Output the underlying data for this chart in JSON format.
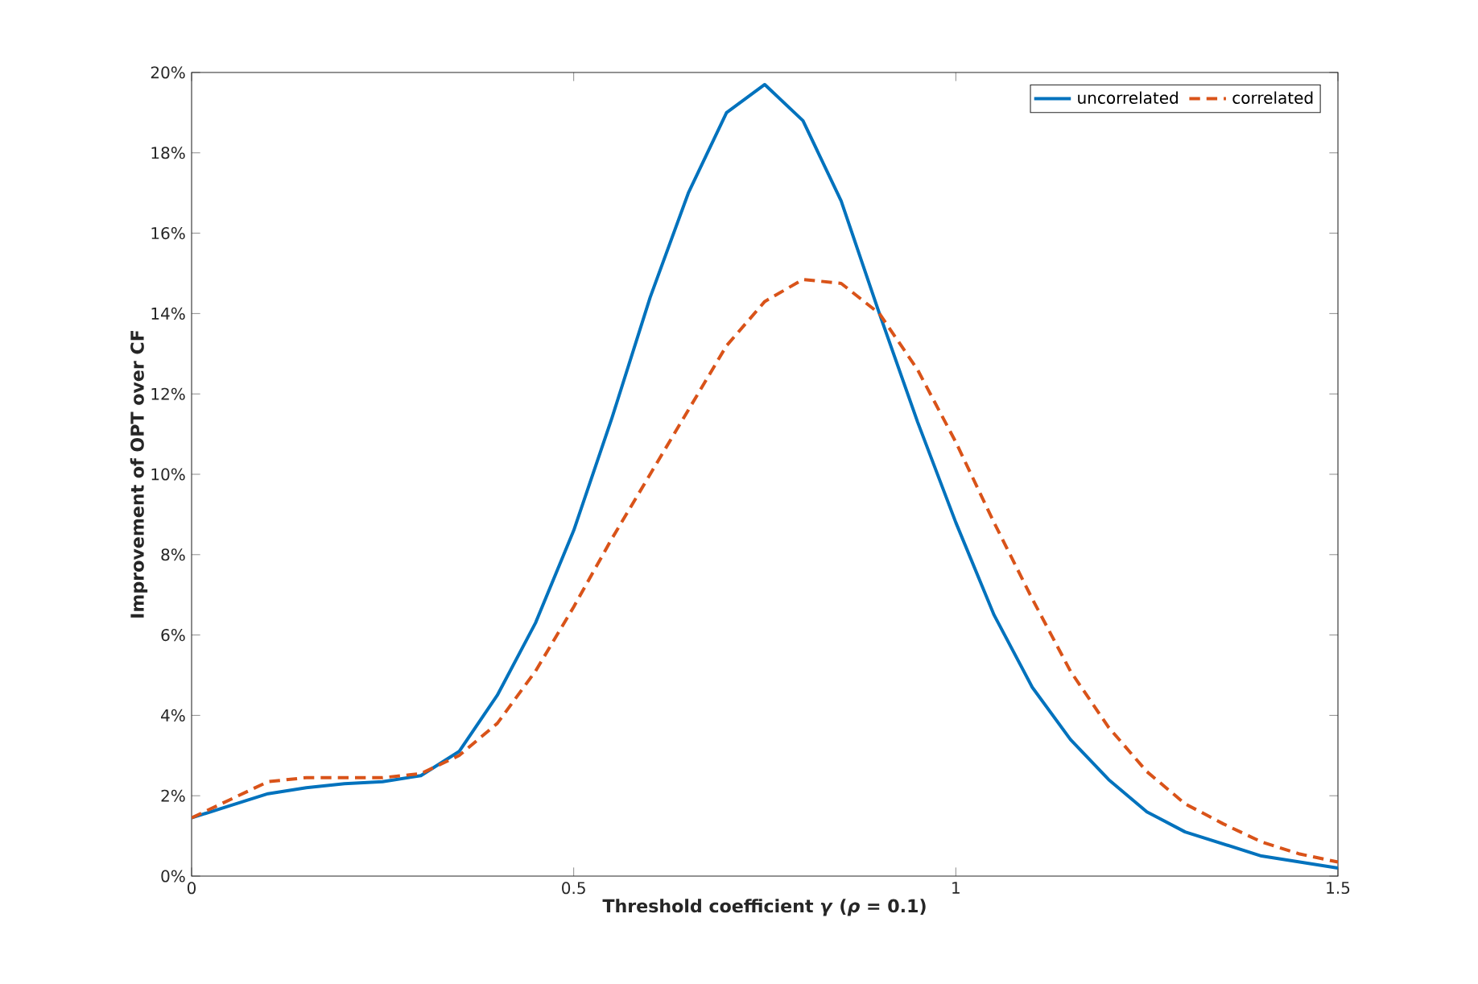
{
  "chart_data": {
    "type": "line",
    "xlabel": "Threshold coefficient *γ* (*ρ* = 0.1)",
    "ylabel": "Improvement of OPT over CF",
    "x": [
      0,
      0.05,
      0.1,
      0.15,
      0.2,
      0.25,
      0.3,
      0.35,
      0.4,
      0.45,
      0.5,
      0.55,
      0.6,
      0.65,
      0.7,
      0.75,
      0.8,
      0.85,
      0.9,
      0.95,
      1.0,
      1.05,
      1.1,
      1.15,
      1.2,
      1.25,
      1.3,
      1.35,
      1.4,
      1.45,
      1.5
    ],
    "series": [
      {
        "name": "uncorrelated",
        "color": "#0072bd",
        "line_style": "solid",
        "values": [
          1.45,
          1.75,
          2.05,
          2.2,
          2.3,
          2.35,
          2.5,
          3.1,
          4.5,
          6.3,
          8.6,
          11.4,
          14.4,
          17.0,
          19.0,
          19.7,
          18.8,
          16.8,
          14.0,
          11.3,
          8.8,
          6.5,
          4.7,
          3.4,
          2.4,
          1.6,
          1.1,
          0.8,
          0.5,
          0.35,
          0.2
        ]
      },
      {
        "name": "correlated",
        "color": "#d95319",
        "line_style": "dashed",
        "values": [
          1.45,
          1.9,
          2.35,
          2.45,
          2.45,
          2.45,
          2.55,
          3.0,
          3.8,
          5.1,
          6.7,
          8.4,
          10.0,
          11.6,
          13.2,
          14.3,
          14.85,
          14.75,
          14.0,
          12.6,
          10.8,
          8.8,
          6.9,
          5.1,
          3.7,
          2.6,
          1.8,
          1.3,
          0.85,
          0.55,
          0.35
        ]
      }
    ],
    "xlim": [
      0,
      1.5
    ],
    "xticks": [
      0,
      0.5,
      1,
      1.5
    ],
    "ylim": [
      0,
      20
    ],
    "yticks": [
      {
        "value": 0,
        "label": "0%"
      },
      {
        "value": 2,
        "label": "2%"
      },
      {
        "value": 4,
        "label": "4%"
      },
      {
        "value": 6,
        "label": "6%"
      },
      {
        "value": 8,
        "label": "8%"
      },
      {
        "value": 10,
        "label": "10%"
      },
      {
        "value": 12,
        "label": "12%"
      },
      {
        "value": 14,
        "label": "14%"
      },
      {
        "value": 16,
        "label": "16%"
      },
      {
        "value": 18,
        "label": "18%"
      },
      {
        "value": 20,
        "label": "20%"
      }
    ],
    "grid": false,
    "legend": "top right",
    "marker": "none"
  }
}
